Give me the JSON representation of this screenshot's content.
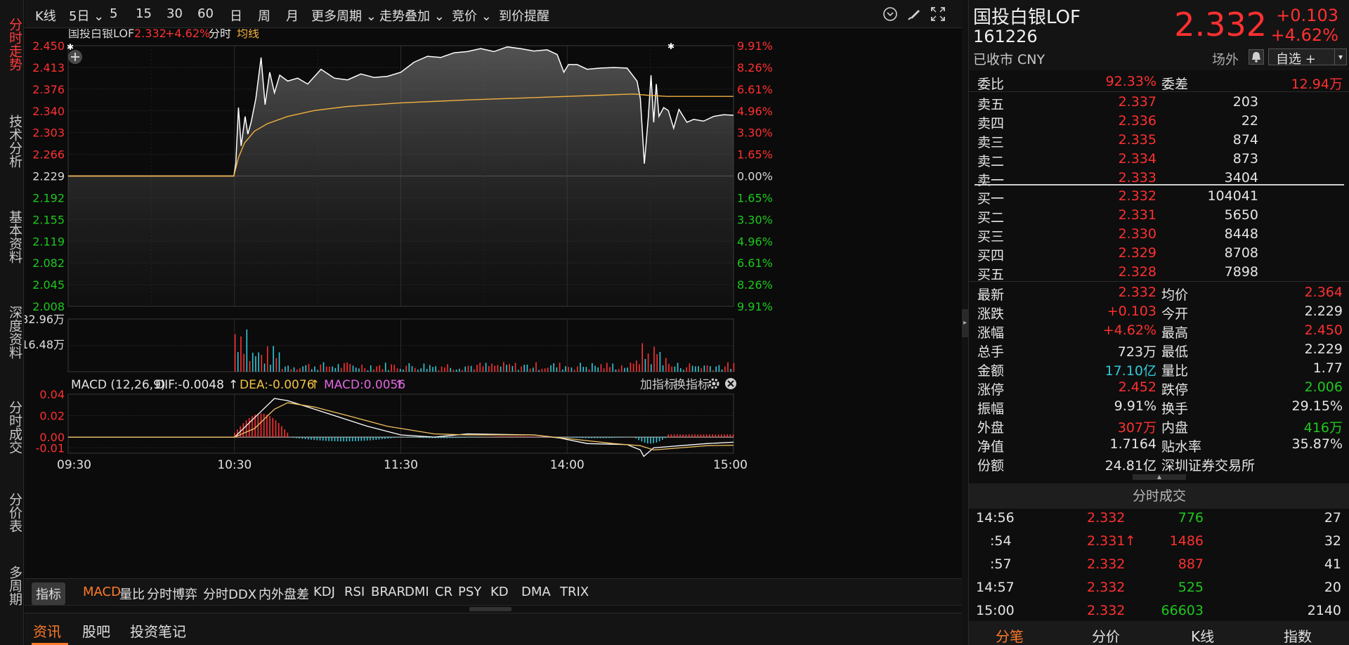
{
  "left_nav": [
    "分时走势",
    "技术分析",
    "基本资料",
    "深度资料",
    "分时成交",
    "分价表",
    "多周期"
  ],
  "toolbar": {
    "items": [
      "K线",
      "5日 ⌄",
      "5",
      "15",
      "30",
      "60",
      "日",
      "周",
      "月",
      "更多周期 ⌄",
      "走势叠加 ⌄",
      "竞价 ⌄",
      "到价提醒"
    ],
    "icons": [
      "chevron-circle-icon",
      "brush-icon",
      "fullscreen-icon"
    ]
  },
  "chart": {
    "legend_name": "国投白银LOF",
    "legend_price": "2.332",
    "legend_change": "+4.62%",
    "legend_line": "分时",
    "legend_avg": "均线",
    "price_ticks": [
      "2.450",
      "2.413",
      "2.376",
      "2.340",
      "2.303",
      "2.266",
      "2.229",
      "2.192",
      "2.155",
      "2.119",
      "2.082",
      "2.045",
      "2.008"
    ],
    "pct_ticks": [
      "9.91%",
      "8.26%",
      "6.61%",
      "4.96%",
      "3.30%",
      "1.65%",
      "0.00%",
      "1.65%",
      "3.30%",
      "4.96%",
      "6.61%",
      "8.26%",
      "9.91%"
    ],
    "volume_ticks": [
      "32.96万",
      "16.48万"
    ],
    "time_ticks": [
      "09:30",
      "10:30",
      "11:30",
      "14:00",
      "15:00"
    ],
    "macd_title": "MACD (12,26,9)",
    "macd_dif": "DIF:-0.0048",
    "macd_dea": "DEA:-0.0076",
    "macd_macd": "MACD:0.0056",
    "macd_ticks": [
      "0.04",
      "0.02",
      "0.00",
      "-0.01"
    ],
    "macd_actions": [
      "加指标",
      "换指标"
    ]
  },
  "indicators": {
    "label": "指标",
    "tabs": [
      "MACD",
      "量比",
      "分时博弈",
      "分时DDX",
      "内外盘差",
      "KDJ",
      "RSI",
      "BRAR",
      "DMI",
      "CR",
      "PSY",
      "KD",
      "DMA",
      "TRIX"
    ]
  },
  "bottom_tabs": [
    "资讯",
    "股吧",
    "投资笔记"
  ],
  "quote": {
    "name": "国投白银LOF",
    "code": "161226",
    "status": "已收市 CNY",
    "price": "2.332",
    "change": "+0.103",
    "change_pct": "+4.62%",
    "offsite": "场外",
    "watchlist": "自选 +",
    "weibi_label": "委比",
    "weibi": "92.33%",
    "weicha_label": "委差",
    "weicha": "12.94万",
    "asks": [
      {
        "label": "卖五",
        "price": "2.337",
        "vol": "203"
      },
      {
        "label": "卖四",
        "price": "2.336",
        "vol": "22"
      },
      {
        "label": "卖三",
        "price": "2.335",
        "vol": "874"
      },
      {
        "label": "卖二",
        "price": "2.334",
        "vol": "873"
      },
      {
        "label": "卖一",
        "price": "2.333",
        "vol": "3404"
      }
    ],
    "bids": [
      {
        "label": "买一",
        "price": "2.332",
        "vol": "104041"
      },
      {
        "label": "买二",
        "price": "2.331",
        "vol": "5650"
      },
      {
        "label": "买三",
        "price": "2.330",
        "vol": "8448"
      },
      {
        "label": "买四",
        "price": "2.329",
        "vol": "8708"
      },
      {
        "label": "买五",
        "price": "2.328",
        "vol": "7898"
      }
    ],
    "stats": [
      {
        "l1": "最新",
        "v1": "2.332",
        "c1": "red",
        "l2": "均价",
        "v2": "2.364",
        "c2": "red"
      },
      {
        "l1": "涨跌",
        "v1": "+0.103",
        "c1": "red",
        "l2": "今开",
        "v2": "2.229",
        "c2": "white"
      },
      {
        "l1": "涨幅",
        "v1": "+4.62%",
        "c1": "red",
        "l2": "最高",
        "v2": "2.450",
        "c2": "red"
      },
      {
        "l1": "总手",
        "v1": "723万",
        "c1": "white",
        "l2": "最低",
        "v2": "2.229",
        "c2": "white"
      },
      {
        "l1": "金额",
        "v1": "17.10亿",
        "c1": "cyan",
        "l2": "量比",
        "v2": "1.77",
        "c2": "white"
      },
      {
        "l1": "涨停",
        "v1": "2.452",
        "c1": "red",
        "l2": "跌停",
        "v2": "2.006",
        "c2": "green"
      },
      {
        "l1": "振幅",
        "v1": "9.91%",
        "c1": "white",
        "l2": "换手",
        "v2": "29.15%",
        "c2": "white"
      },
      {
        "l1": "外盘",
        "v1": "307万",
        "c1": "red",
        "l2": "内盘",
        "v2": "416万",
        "c2": "green"
      },
      {
        "l1": "净值",
        "v1": "1.7164",
        "c1": "white",
        "l2": "贴水率",
        "v2": "35.87%",
        "c2": "white"
      },
      {
        "l1": "份额",
        "v1": "24.81亿",
        "c1": "white",
        "l2": "深圳证券交易所",
        "v2": "",
        "c2": "white"
      }
    ],
    "trades_title": "分时成交",
    "trades": [
      {
        "time": "14:56",
        "price": "2.332",
        "pc": "red",
        "vol": "776",
        "vc": "green",
        "n": "27",
        "arrow": ""
      },
      {
        "time": ":54",
        "price": "2.331",
        "pc": "red",
        "vol": "1486",
        "vc": "red",
        "n": "32",
        "arrow": "↑"
      },
      {
        "time": ":57",
        "price": "2.332",
        "pc": "red",
        "vol": "887",
        "vc": "red",
        "n": "41",
        "arrow": ""
      },
      {
        "time": "14:57",
        "price": "2.332",
        "pc": "red",
        "vol": "525",
        "vc": "green",
        "n": "20",
        "arrow": ""
      },
      {
        "time": "15:00",
        "price": "2.332",
        "pc": "red",
        "vol": "66603",
        "vc": "green",
        "n": "2140",
        "arrow": ""
      }
    ],
    "footer_tabs": [
      "分笔",
      "分价",
      "K线",
      "指数"
    ]
  },
  "colors": {
    "up": "#ff3030",
    "down": "#1ec81e",
    "price_line": "#ffffff",
    "avg_line": "#f0b040",
    "accent": "#ff7a2a"
  }
}
